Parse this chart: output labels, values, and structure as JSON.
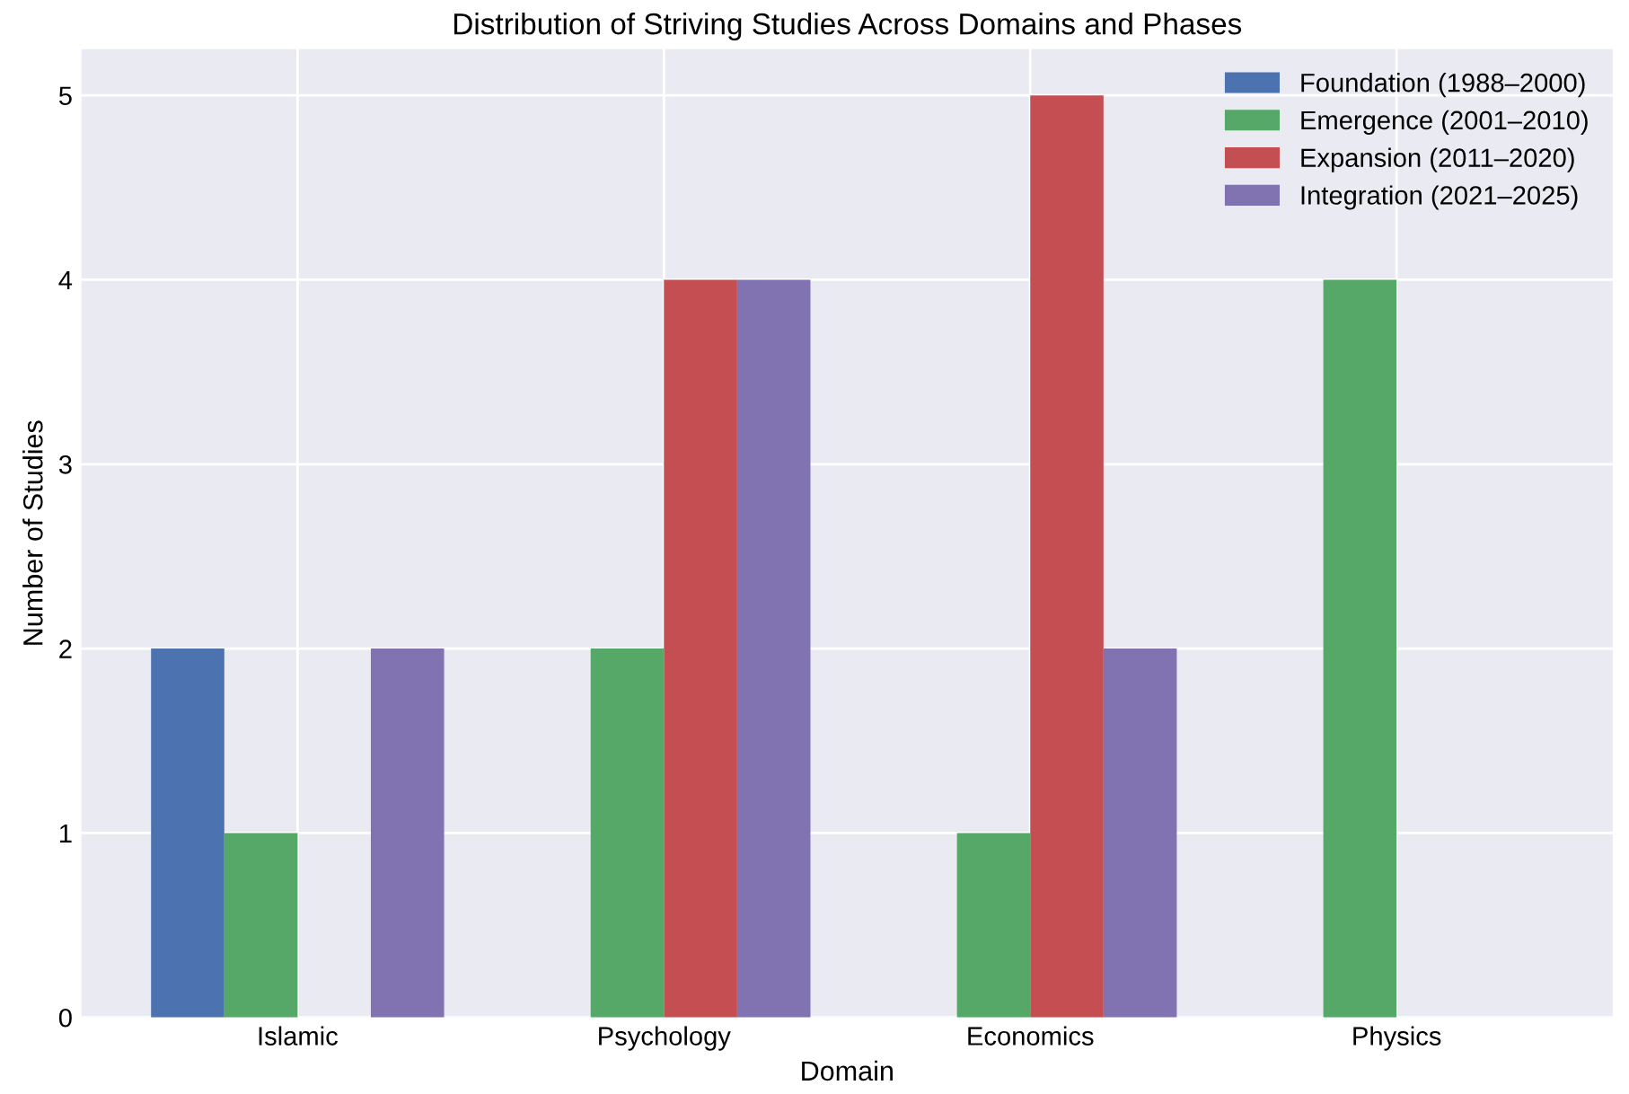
{
  "chart_data": {
    "type": "bar",
    "title": "Distribution of Striving Studies Across Domains and Phases",
    "xlabel": "Domain",
    "ylabel": "Number of Studies",
    "categories": [
      "Islamic",
      "Psychology",
      "Economics",
      "Physics"
    ],
    "series": [
      {
        "name": "Foundation (1988–2000)",
        "color": "#4c72b0",
        "values": [
          2,
          0,
          0,
          0
        ]
      },
      {
        "name": "Emergence (2001–2010)",
        "color": "#55a868",
        "values": [
          1,
          2,
          1,
          4
        ]
      },
      {
        "name": "Expansion (2011–2020)",
        "color": "#c44e52",
        "values": [
          0,
          4,
          5,
          0
        ]
      },
      {
        "name": "Integration (2021–2025)",
        "color": "#8172b2",
        "values": [
          2,
          4,
          2,
          0
        ]
      }
    ],
    "ylim": [
      0,
      5.25
    ],
    "yticks": [
      0,
      1,
      2,
      3,
      4,
      5
    ],
    "grid": true,
    "legend": "top right"
  }
}
